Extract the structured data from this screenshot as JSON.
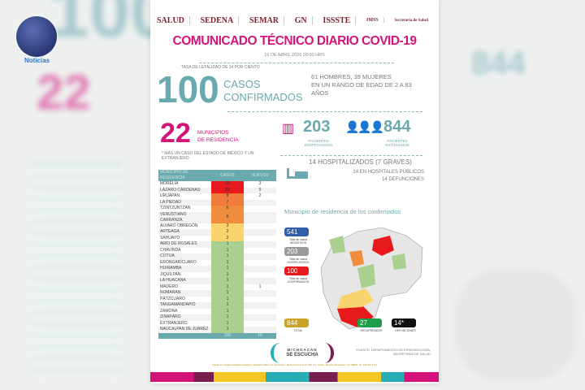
{
  "watermark": {
    "label": "Noticias"
  },
  "background": {
    "big_100": "100",
    "big_22": "22",
    "big_844": "844"
  },
  "header": {
    "logos": [
      "SALUD",
      "SEDENA",
      "SEMAR",
      "GN",
      "ISSSTE",
      "IMSS",
      "Secretaría de Salud"
    ],
    "title": "COMUNICADO TÉCNICO DIARIO COVID-19",
    "date": "16 DE ABRIL 2020 20:00 HRS"
  },
  "summary": {
    "lethality": "TASA DE LETALIDAD DE 14 POR CIENTO",
    "confirmed": "100",
    "confirmed_l1": "CASOS",
    "confirmed_l2": "CONFIRMADOS",
    "demo_l1": "61 HOMBRES, 39 MUJERES",
    "demo_l2": "EN UN RANGO DE EDAD DE 2 A 83",
    "demo_l3": "AÑOS"
  },
  "municipios": {
    "count": "22",
    "l1": "MUNICIPIOS",
    "l2": "DE RESIDENCIA",
    "note": "* MÁS UN CASO DEL ESTADO DE MÉXICO Y UN EXTRANJERO"
  },
  "suspects": {
    "value": "203",
    "l1": "PACIENTES",
    "l2": "SOSPECHOSOS"
  },
  "studied": {
    "value": "844",
    "l1": "PACIENTES",
    "l2": "ESTUDIADOS"
  },
  "hospital": {
    "l1": "14 HOSPITALIZADOS (7 GRAVES)",
    "l2": "14 EN HOSPITALES PÚBLICOS",
    "l3": "14 DEFUNCIONES"
  },
  "table": {
    "headers": [
      "MUNICIPIO DE RESIDENCIA",
      "CASOS",
      "NUEVOS"
    ],
    "rows": [
      {
        "m": "MORELIA",
        "c": "28",
        "n": "3",
        "color": "#e8191c"
      },
      {
        "m": "LÁZARO CÁRDENAS",
        "c": "23",
        "n": "9",
        "color": "#e8191c"
      },
      {
        "m": "URUAPAN",
        "c": "8",
        "n": "2",
        "color": "#f07b3a"
      },
      {
        "m": "LA PIEDAD",
        "c": "7",
        "n": "",
        "color": "#f07b3a"
      },
      {
        "m": "TZINTZUNTZAN",
        "c": "6",
        "n": "",
        "color": "#ef8d3c"
      },
      {
        "m": "VENUSTIANO CARRANZA",
        "c": "6",
        "n": "",
        "color": "#ef8d3c"
      },
      {
        "m": "ALVARO OBREGÓN",
        "c": "3",
        "n": "",
        "color": "#f9d36b"
      },
      {
        "m": "ARTEAGA",
        "c": "2",
        "n": "",
        "color": "#f9d36b"
      },
      {
        "m": "SAHUAYO",
        "c": "2",
        "n": "",
        "color": "#f9d36b"
      },
      {
        "m": "ARIO DE ROSALES",
        "c": "1",
        "n": "",
        "color": "#a9d08e"
      },
      {
        "m": "CHAVINDA",
        "c": "1",
        "n": "",
        "color": "#a9d08e"
      },
      {
        "m": "COTIJA",
        "c": "1",
        "n": "",
        "color": "#a9d08e"
      },
      {
        "m": "ERONGARÍCUARO",
        "c": "1",
        "n": "",
        "color": "#a9d08e"
      },
      {
        "m": "HUIRAMBA",
        "c": "1",
        "n": "",
        "color": "#a9d08e"
      },
      {
        "m": "JIQUILPAN",
        "c": "1",
        "n": "",
        "color": "#a9d08e"
      },
      {
        "m": "LA HUACANA",
        "c": "1",
        "n": "",
        "color": "#a9d08e"
      },
      {
        "m": "MADERO",
        "c": "1",
        "n": "1",
        "color": "#a9d08e"
      },
      {
        "m": "NUMARÁN",
        "c": "1",
        "n": "",
        "color": "#a9d08e"
      },
      {
        "m": "PÁTZCUARO",
        "c": "1",
        "n": "",
        "color": "#a9d08e"
      },
      {
        "m": "TANGAMANDAPIO",
        "c": "1",
        "n": "",
        "color": "#a9d08e"
      },
      {
        "m": "ZAMORA",
        "c": "1",
        "n": "",
        "color": "#a9d08e"
      },
      {
        "m": "ZINAPÁRO",
        "c": "1",
        "n": "",
        "color": "#a9d08e"
      },
      {
        "m": "EXTRANJERO",
        "c": "1",
        "n": "",
        "color": "#a9d08e"
      },
      {
        "m": "NAUCALPAN DE JUÁREZ",
        "c": "1",
        "n": "",
        "color": "#a9d08e"
      }
    ],
    "total": [
      "",
      "100",
      "15"
    ]
  },
  "map": {
    "title": "Municipio de residencia de los confirmados",
    "negatives": {
      "value": "541",
      "label": "Total de casos NEGATIVOS",
      "color": "#2e5fa8"
    },
    "suspects": {
      "value": "203",
      "label": "Total de casos SOSPECHOSOS",
      "color": "#9a9a9a"
    },
    "confirmed": {
      "value": "100",
      "label": "Total de casos CONFIRMADOS",
      "color": "#e8191c"
    },
    "total": {
      "value": "844",
      "label": "TOTAL",
      "color": "#c9a227"
    },
    "recovered": {
      "value": "27",
      "label": "RECUPERADOS",
      "color": "#1f9e4a"
    },
    "deaths": {
      "value": "14*",
      "label": "DEFUNCIONES",
      "color": "#111111"
    }
  },
  "footer": {
    "campaign_l1": "MICHOACÁN",
    "campaign_l2": "SE ESCUCHA",
    "source": "FUENTE: DEPARTAMENTO DE EPIDEMIOLOGÍA, SECRETARÍA DE SALUD",
    "address": "Unidad de Inteligencia Epidemiológica y Sanitaria (UIES), Av. Francisco I. Madero Poniente Nº 108, Col. Centro, Morelia, Michoacán, C.P. 58000. Tel. 443 312 2714"
  }
}
